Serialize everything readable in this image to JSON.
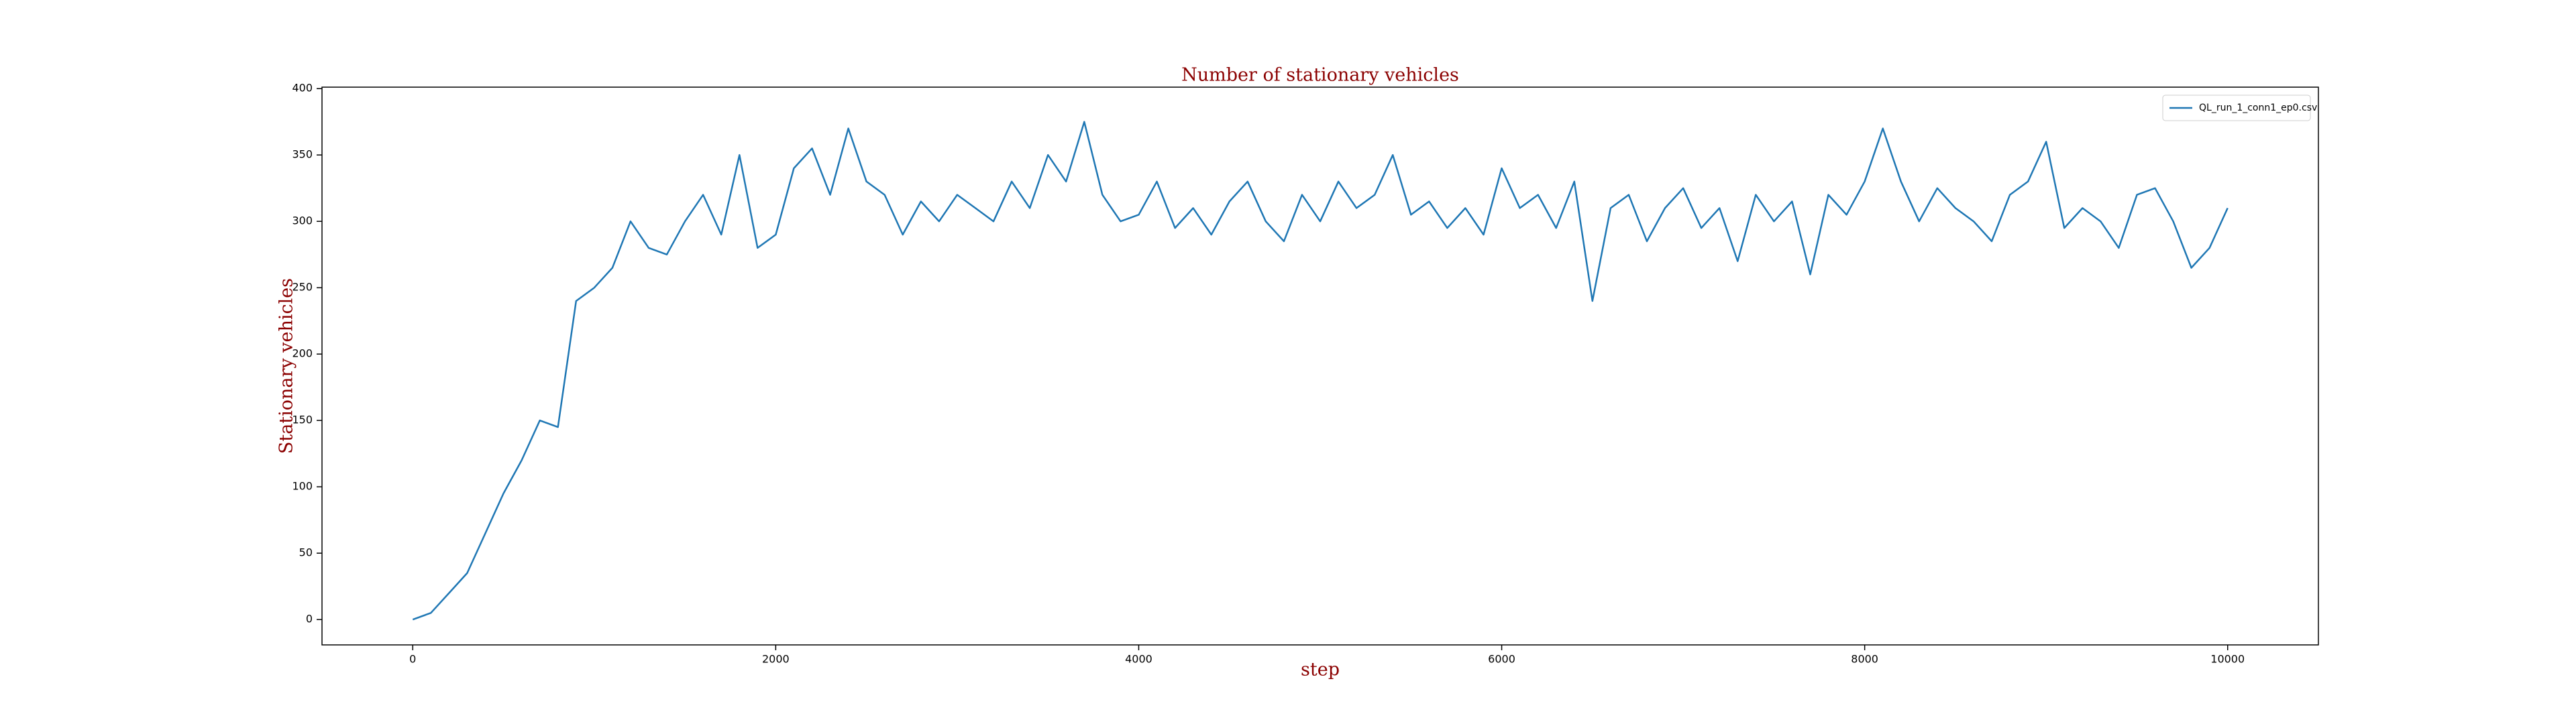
{
  "chart_data": {
    "type": "line",
    "title": "Number of stationary vehicles",
    "xlabel": "step",
    "ylabel": "Stationary vehicles",
    "x": [
      0,
      100,
      200,
      300,
      400,
      500,
      600,
      700,
      800,
      900,
      1000,
      1100,
      1200,
      1300,
      1400,
      1500,
      1600,
      1700,
      1800,
      1900,
      2000,
      2100,
      2200,
      2300,
      2400,
      2500,
      2600,
      2700,
      2800,
      2900,
      3000,
      3100,
      3200,
      3300,
      3400,
      3500,
      3600,
      3700,
      3800,
      3900,
      4000,
      4100,
      4200,
      4300,
      4400,
      4500,
      4600,
      4700,
      4800,
      4900,
      5000,
      5100,
      5200,
      5300,
      5400,
      5500,
      5600,
      5700,
      5800,
      5900,
      6000,
      6100,
      6200,
      6300,
      6400,
      6500,
      6600,
      6700,
      6800,
      6900,
      7000,
      7100,
      7200,
      7300,
      7400,
      7500,
      7600,
      7700,
      7800,
      7900,
      8000,
      8100,
      8200,
      8300,
      8400,
      8500,
      8600,
      8700,
      8800,
      8900,
      9000,
      9100,
      9200,
      9300,
      9400,
      9500,
      9600,
      9700,
      9800,
      9900,
      10000
    ],
    "series": [
      {
        "name": "QL_run_1_conn1_ep0.csv",
        "color": "#1f77b4",
        "values": [
          0,
          5,
          20,
          35,
          65,
          95,
          120,
          150,
          145,
          240,
          250,
          265,
          300,
          280,
          275,
          300,
          320,
          290,
          350,
          280,
          290,
          340,
          355,
          320,
          370,
          330,
          320,
          290,
          315,
          300,
          320,
          310,
          300,
          330,
          310,
          350,
          330,
          375,
          320,
          300,
          305,
          330,
          295,
          310,
          290,
          315,
          330,
          300,
          285,
          320,
          300,
          330,
          310,
          320,
          350,
          305,
          315,
          295,
          310,
          290,
          340,
          310,
          320,
          295,
          330,
          240,
          310,
          320,
          285,
          310,
          325,
          295,
          310,
          270,
          320,
          300,
          315,
          260,
          320,
          305,
          330,
          370,
          330,
          300,
          325,
          310,
          300,
          285,
          320,
          330,
          360,
          295,
          310,
          300,
          280,
          320,
          325,
          300,
          265,
          280,
          310
        ]
      }
    ],
    "xlim": [
      -500,
      10500
    ],
    "ylim": [
      -19.1,
      401.1
    ],
    "xticks": [
      0,
      2000,
      4000,
      6000,
      8000,
      10000
    ],
    "yticks": [
      0,
      50,
      100,
      150,
      200,
      250,
      300,
      350,
      400
    ],
    "grid": false,
    "legend": "upper right"
  }
}
